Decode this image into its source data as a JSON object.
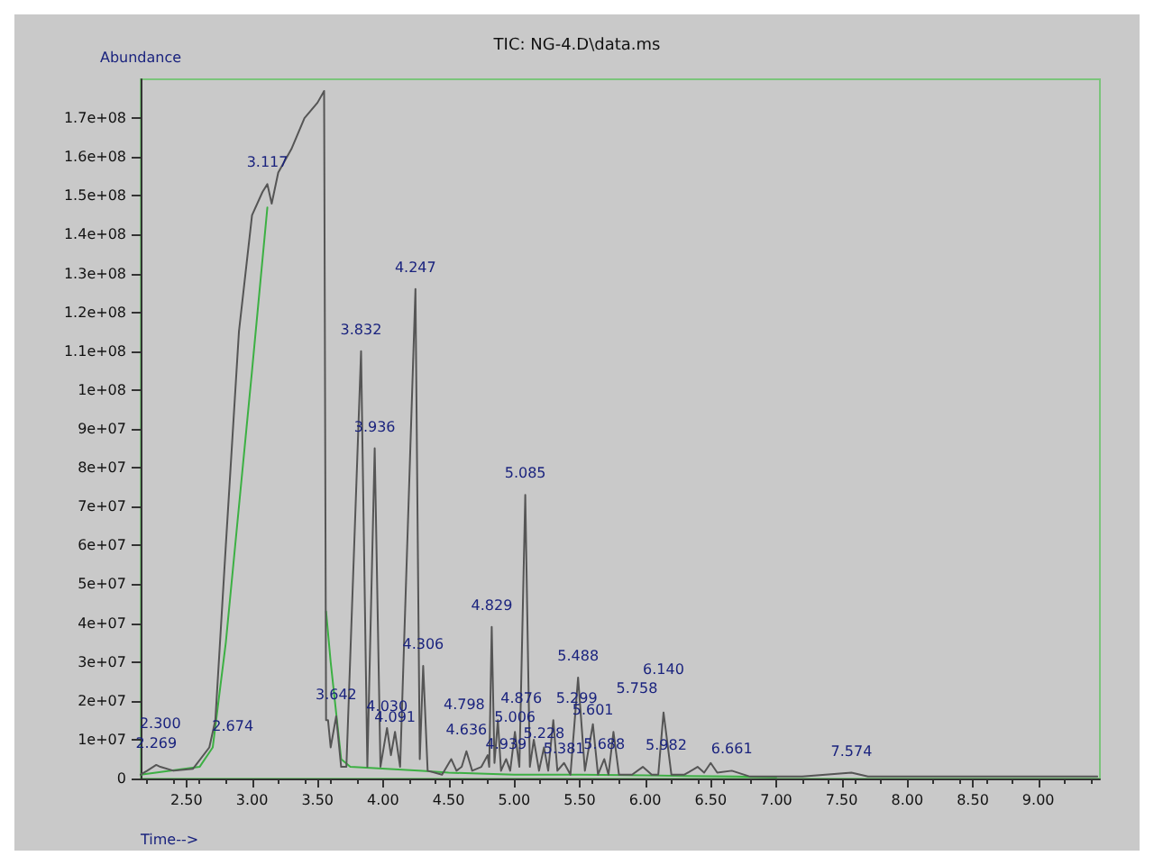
{
  "chart_data": {
    "type": "line",
    "title": "TIC: NG-4.D\\data.ms",
    "xlabel": "Time-->",
    "ylabel": "Abundance",
    "xlim": [
      2.15,
      9.47
    ],
    "ylim": [
      0,
      180000000.0
    ],
    "xticks": [
      {
        "value": 2.5,
        "label": "2.50"
      },
      {
        "value": 3,
        "label": "3.00"
      },
      {
        "value": 3.5,
        "label": "3.50"
      },
      {
        "value": 4,
        "label": "4.00"
      },
      {
        "value": 4.5,
        "label": "4.50"
      },
      {
        "value": 5,
        "label": "5.00"
      },
      {
        "value": 5.5,
        "label": "5.50"
      },
      {
        "value": 6,
        "label": "6.00"
      },
      {
        "value": 6.5,
        "label": "6.50"
      },
      {
        "value": 7,
        "label": "7.00"
      },
      {
        "value": 7.5,
        "label": "7.50"
      },
      {
        "value": 8,
        "label": "8.00"
      },
      {
        "value": 8.5,
        "label": "8.50"
      },
      {
        "value": 9,
        "label": "9.00"
      }
    ],
    "yticks": [
      0,
      {
        "value": 10000000.0,
        "label": "1e+07"
      },
      {
        "value": 20000000.0,
        "label": "2e+07"
      },
      {
        "value": 30000000.0,
        "label": "3e+07"
      },
      {
        "value": 40000000.0,
        "label": "4e+07"
      },
      {
        "value": 50000000.0,
        "label": "5e+07"
      },
      {
        "value": 60000000.0,
        "label": "6e+07"
      },
      {
        "value": 70000000.0,
        "label": "7e+07"
      },
      {
        "value": 80000000.0,
        "label": "8e+07"
      },
      {
        "value": 90000000.0,
        "label": "9e+07"
      },
      {
        "value": 100000000.0,
        "label": "1e+08"
      },
      {
        "value": 110000000.0,
        "label": "1.1e+08"
      },
      {
        "value": 120000000.0,
        "label": "1.2e+08"
      },
      {
        "value": 130000000.0,
        "label": "1.3e+08"
      },
      {
        "value": 140000000.0,
        "label": "1.4e+08"
      },
      {
        "value": 150000000.0,
        "label": "1.5e+08"
      },
      {
        "value": 160000000.0,
        "label": "1.6e+08"
      },
      {
        "value": 170000000.0,
        "label": "1.7e+08"
      }
    ],
    "marker": "none",
    "series": [
      {
        "color": "#555555",
        "x": [
          2.15,
          2.2,
          2.269,
          2.3,
          2.4,
          2.55,
          2.674,
          2.72,
          2.8,
          2.9,
          3.0,
          3.08,
          3.117,
          3.15,
          3.2,
          3.3,
          3.4,
          3.5,
          3.55,
          3.565,
          3.58,
          3.6,
          3.642,
          3.68,
          3.72,
          3.832,
          3.88,
          3.936,
          3.98,
          4.03,
          4.06,
          4.091,
          4.13,
          4.247,
          4.28,
          4.306,
          4.34,
          4.45,
          4.52,
          4.56,
          4.6,
          4.636,
          4.68,
          4.75,
          4.798,
          4.81,
          4.829,
          4.85,
          4.876,
          4.9,
          4.939,
          4.97,
          5.006,
          5.04,
          5.085,
          5.12,
          5.15,
          5.19,
          5.228,
          5.26,
          5.299,
          5.33,
          5.381,
          5.43,
          5.488,
          5.54,
          5.601,
          5.64,
          5.688,
          5.72,
          5.758,
          5.8,
          5.9,
          5.982,
          6.05,
          6.1,
          6.14,
          6.2,
          6.3,
          6.4,
          6.45,
          6.5,
          6.55,
          6.661,
          6.8,
          7.2,
          7.574,
          7.7,
          8.2,
          8.5,
          9.0,
          9.45
        ],
        "values": [
          1000000.0,
          2000000.0,
          3500000.0,
          3000000.0,
          2000000.0,
          2500000.0,
          8000000.0,
          15000000.0,
          60000000.0,
          115000000.0,
          145000000.0,
          151000000.0,
          153000000.0,
          148000000.0,
          156000000.0,
          162000000.0,
          170000000.0,
          174000000.0,
          177000000.0,
          15000000.0,
          15000000.0,
          8000000.0,
          16000000.0,
          3000000.0,
          3000000.0,
          110000000.0,
          3000000.0,
          85000000.0,
          3000000.0,
          13000000.0,
          6000000.0,
          12000000.0,
          3000000.0,
          126000000.0,
          5000000.0,
          29000000.0,
          2000000.0,
          1000000.0,
          5000000.0,
          2000000.0,
          3000000.0,
          7000000.0,
          2000000.0,
          3000000.0,
          6000000.0,
          3000000.0,
          39000000.0,
          4000000.0,
          15000000.0,
          2000000.0,
          5000000.0,
          2000000.0,
          12000000.0,
          3000000.0,
          73000000.0,
          3000000.0,
          10000000.0,
          2000000.0,
          8000000.0,
          2000000.0,
          15000000.0,
          2000000.0,
          4000000.0,
          1000000.0,
          26000000.0,
          2000000.0,
          14000000.0,
          1000000.0,
          5000000.0,
          1000000.0,
          12000000.0,
          1000000.0,
          1000000.0,
          3000000.0,
          1000000.0,
          1000000.0,
          17000000.0,
          1000000.0,
          1000000.0,
          3000000.0,
          1500000.0,
          4000000.0,
          1500000.0,
          2000000.0,
          500000.0,
          500000.0,
          1500000.0,
          500000.0,
          500000.0,
          500000.0,
          500000.0,
          500000.0
        ]
      },
      {
        "color": "#3cb043",
        "x": [
          2.15,
          2.6,
          2.7,
          2.8,
          2.9,
          3.0,
          3.117,
          3.13,
          3.565,
          3.6,
          3.68,
          3.75,
          4.3,
          4.5,
          5.0,
          5.5,
          6.0,
          6.7,
          7.0
        ],
        "values": [
          1000000.0,
          3000000.0,
          8000000.0,
          35000000.0,
          70000000.0,
          105000000.0,
          147000000.0,
          null,
          43000000.0,
          30000000.0,
          5000000.0,
          3000000.0,
          2000000.0,
          1500000.0,
          1000000.0,
          1000000.0,
          800000.0,
          500000.0,
          300000.0
        ]
      }
    ],
    "annotations": [
      {
        "text": "2.269",
        "x": 2.269,
        "y": 3500000.0
      },
      {
        "text": "2.300",
        "x": 2.3,
        "y": 3000000.0
      },
      {
        "text": "2.674",
        "x": 2.674,
        "y": 8000000.0
      },
      {
        "text": "3.117",
        "x": 3.117,
        "y": 153000000.0
      },
      {
        "text": "3.642",
        "x": 3.642,
        "y": 16000000.0
      },
      {
        "text": "3.832",
        "x": 3.832,
        "y": 110000000.0
      },
      {
        "text": "3.936",
        "x": 3.936,
        "y": 85000000.0
      },
      {
        "text": "4.030",
        "x": 4.03,
        "y": 13000000.0
      },
      {
        "text": "4.091",
        "x": 4.091,
        "y": 12000000.0
      },
      {
        "text": "4.247",
        "x": 4.247,
        "y": 126000000.0
      },
      {
        "text": "4.306",
        "x": 4.306,
        "y": 29000000.0
      },
      {
        "text": "4.636",
        "x": 4.636,
        "y": 7000000.0
      },
      {
        "text": "4.798",
        "x": 4.798,
        "y": 6000000.0
      },
      {
        "text": "4.829",
        "x": 4.829,
        "y": 39000000.0
      },
      {
        "text": "4.876",
        "x": 4.876,
        "y": 15000000.0
      },
      {
        "text": "4.939",
        "x": 4.939,
        "y": 5000000.0
      },
      {
        "text": "5.006",
        "x": 5.006,
        "y": 12000000.0
      },
      {
        "text": "5.085",
        "x": 5.085,
        "y": 73000000.0
      },
      {
        "text": "5.228",
        "x": 5.228,
        "y": 8000000.0
      },
      {
        "text": "5.299",
        "x": 5.299,
        "y": 15000000.0
      },
      {
        "text": "5.381",
        "x": 5.381,
        "y": 4000000.0
      },
      {
        "text": "5.488",
        "x": 5.488,
        "y": 26000000.0
      },
      {
        "text": "5.601",
        "x": 5.601,
        "y": 14000000.0
      },
      {
        "text": "5.688",
        "x": 5.688,
        "y": 5000000.0
      },
      {
        "text": "5.758",
        "x": 5.758,
        "y": 12000000.0
      },
      {
        "text": "5.982",
        "x": 5.982,
        "y": 3000000.0
      },
      {
        "text": "6.140",
        "x": 6.14,
        "y": 17000000.0
      },
      {
        "text": "6.661",
        "x": 6.661,
        "y": 2000000.0
      },
      {
        "text": "7.574",
        "x": 7.574,
        "y": 1500000.0
      }
    ]
  }
}
